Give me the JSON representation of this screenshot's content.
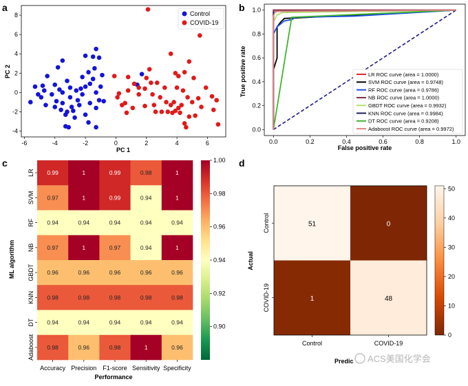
{
  "panel_labels": [
    "a",
    "b",
    "c",
    "d"
  ],
  "watermark": "ACS美国化学会",
  "chart_data": [
    {
      "panel": "a",
      "type": "scatter",
      "xlabel": "PC 1",
      "ylabel": "PC 2",
      "xlim": [
        -6.2,
        7.2
      ],
      "ylim": [
        -4.6,
        9.0
      ],
      "xticks": [
        -6,
        -4,
        -2,
        0,
        2,
        4,
        6
      ],
      "yticks": [
        -4,
        -2,
        0,
        2,
        4,
        6,
        8
      ],
      "legend_position": "top-right",
      "series": [
        {
          "name": "Control",
          "color": "#1414d8",
          "points": [
            [
              -5.3,
              0.6
            ],
            [
              -5.1,
              -0.2
            ],
            [
              -4.8,
              0.7
            ],
            [
              -4.9,
              -0.5
            ],
            [
              -5.6,
              -1.0
            ],
            [
              -4.7,
              0.2
            ],
            [
              -4.6,
              -1.3
            ],
            [
              -4.2,
              -0.2
            ],
            [
              -4.0,
              0.8
            ],
            [
              -3.7,
              0.3
            ],
            [
              -3.9,
              -0.9
            ],
            [
              -3.5,
              -1.1
            ],
            [
              -3.8,
              2.6
            ],
            [
              -3.5,
              3.3
            ],
            [
              -3.2,
              1.2
            ],
            [
              -3.0,
              -0.5
            ],
            [
              -2.9,
              -1.5
            ],
            [
              -2.8,
              -1.9
            ],
            [
              -3.6,
              -1.8
            ],
            [
              -3.3,
              -2.3
            ],
            [
              -3.3,
              -3.5
            ],
            [
              -3.1,
              -3.6
            ],
            [
              -2.7,
              -2.6
            ],
            [
              -2.5,
              -0.8
            ],
            [
              -2.3,
              0.4
            ],
            [
              -2.2,
              1.6
            ],
            [
              -1.8,
              2.1
            ],
            [
              -2.0,
              3.8
            ],
            [
              -1.5,
              3.7
            ],
            [
              -1.3,
              4.5
            ],
            [
              -1.1,
              3.6
            ],
            [
              -1.4,
              2.5
            ],
            [
              -1.7,
              0.9
            ],
            [
              -1.3,
              0.0
            ],
            [
              -1.1,
              -0.8
            ],
            [
              -1.7,
              -1.1
            ],
            [
              -1.3,
              -1.6
            ],
            [
              -2.0,
              -2.3
            ],
            [
              -1.8,
              -3.1
            ],
            [
              -0.8,
              -0.9
            ],
            [
              -0.9,
              1.8
            ],
            [
              -1.3,
              -3.6
            ],
            [
              -4.5,
              1.7
            ],
            [
              -3.0,
              0.5
            ],
            [
              -3.5,
              0.0
            ],
            [
              -2.4,
              -1.3
            ],
            [
              -2.2,
              -0.2
            ],
            [
              -2.0,
              0.6
            ],
            [
              1.7,
              1.9
            ],
            [
              1.4,
              0.8
            ],
            [
              -4.0,
              -1.5
            ],
            [
              -3.2,
              -2.0
            ],
            [
              -2.6,
              0.2
            ],
            [
              -1.5,
              1.4
            ],
            [
              -1.0,
              0.6
            ]
          ]
        },
        {
          "name": "COVID-19",
          "color": "#e01a1a",
          "points": [
            [
              2.1,
              8.6
            ],
            [
              5.5,
              5.9
            ],
            [
              3.6,
              4.0
            ],
            [
              4.8,
              3.2
            ],
            [
              2.2,
              2.4
            ],
            [
              3.9,
              2.0
            ],
            [
              4.1,
              1.7
            ],
            [
              4.5,
              2.1
            ],
            [
              5.1,
              1.5
            ],
            [
              2.0,
              1.5
            ],
            [
              2.7,
              1.0
            ],
            [
              0.8,
              1.6
            ],
            [
              -0.1,
              1.7
            ],
            [
              0.8,
              0.2
            ],
            [
              0.1,
              -0.5
            ],
            [
              0.6,
              -1.1
            ],
            [
              1.5,
              -0.2
            ],
            [
              1.9,
              0.4
            ],
            [
              2.4,
              -0.2
            ],
            [
              2.9,
              -0.5
            ],
            [
              3.3,
              -1.0
            ],
            [
              3.6,
              -1.3
            ],
            [
              3.9,
              -1.9
            ],
            [
              4.2,
              -2.1
            ],
            [
              4.3,
              -1.3
            ],
            [
              4.7,
              -0.5
            ],
            [
              5.0,
              -1.0
            ],
            [
              5.6,
              -1.5
            ],
            [
              5.9,
              0.5
            ],
            [
              6.3,
              -0.4
            ],
            [
              6.6,
              -0.8
            ],
            [
              6.4,
              -1.8
            ],
            [
              6.7,
              -3.3
            ],
            [
              4.5,
              -3.2
            ],
            [
              4.6,
              -3.6
            ],
            [
              3.8,
              -1.0
            ],
            [
              4.0,
              0.5
            ],
            [
              3.0,
              -2.0
            ],
            [
              3.4,
              -2.0
            ],
            [
              2.6,
              -2.0
            ],
            [
              2.3,
              1.0
            ],
            [
              1.2,
              0.9
            ],
            [
              1.1,
              -1.6
            ],
            [
              0.7,
              -2.1
            ],
            [
              0.4,
              -1.3
            ],
            [
              1.9,
              -1.4
            ],
            [
              2.5,
              -1.3
            ],
            [
              4.1,
              -1.6
            ],
            [
              3.7,
              -2.1
            ],
            [
              5.2,
              -2.4
            ],
            [
              4.8,
              -2.5
            ],
            [
              5.4,
              -0.6
            ],
            [
              1.5,
              0.5
            ],
            [
              0.2,
              -0.1
            ],
            [
              3.2,
              0.5
            ],
            [
              4.4,
              0.2
            ]
          ]
        }
      ]
    },
    {
      "panel": "b",
      "type": "line",
      "xlabel": "False positive rate",
      "ylabel": "True positive rate",
      "xlim": [
        -0.05,
        1.05
      ],
      "ylim": [
        -0.05,
        1.05
      ],
      "xticks": [
        0.0,
        0.2,
        0.4,
        0.6,
        0.8,
        1.0
      ],
      "xtick_labels": [
        "0.0",
        "0.2",
        "0.4",
        "0.6",
        "0.8",
        "1.0"
      ],
      "yticks": [
        0.0,
        0.2,
        0.4,
        0.6,
        0.8,
        1.0
      ],
      "ytick_labels": [
        "0.0",
        "0.2",
        "0.4",
        "0.6",
        "0.8",
        "1.0"
      ],
      "legend_position": "bottom-right",
      "series": [
        {
          "name": "LR ROC curve (area = 1.0000)",
          "color": "#e0292b",
          "x": [
            0,
            0,
            1
          ],
          "y": [
            0,
            1,
            1
          ]
        },
        {
          "name": "SVM ROC curve (area = 0.9748)",
          "color": "#000000",
          "x": [
            0,
            0,
            0.02,
            0.02,
            0.04,
            0.06,
            0.2,
            1
          ],
          "y": [
            0,
            0.5,
            0.6,
            0.86,
            0.9,
            0.93,
            0.94,
            1
          ]
        },
        {
          "name": "RF ROC curve (area = 0.9786)",
          "color": "#1c4ee0",
          "x": [
            0,
            0,
            0.02,
            0.06,
            0.1,
            0.12,
            0.45,
            1
          ],
          "y": [
            0,
            0.8,
            0.86,
            0.91,
            0.92,
            0.94,
            0.95,
            1
          ]
        },
        {
          "name": "NB ROC curve (area = 1.0000)",
          "color": "#7b2a45",
          "x": [
            0,
            0,
            1
          ],
          "y": [
            0,
            1,
            1
          ]
        },
        {
          "name": "GBDT ROC curve (area = 0.9932)",
          "color": "#b3e26b",
          "x": [
            0,
            0,
            0.02,
            0.05,
            1
          ],
          "y": [
            0,
            0.9,
            0.96,
            0.98,
            1
          ]
        },
        {
          "name": "KNN ROC curve (area = 0.9984)",
          "color": "#1d1d5a",
          "x": [
            0,
            0,
            0.02,
            1
          ],
          "y": [
            0,
            0.98,
            0.99,
            1
          ]
        },
        {
          "name": "DT ROC curve (area = 0.9208)",
          "color": "#3fb52d",
          "x": [
            0,
            0.1,
            1
          ],
          "y": [
            0,
            0.94,
            1
          ]
        },
        {
          "name": "Adaboost ROC curve (area = 0.9972)",
          "color": "#e08080",
          "x": [
            0,
            0,
            0.01,
            1
          ],
          "y": [
            0,
            0.95,
            0.99,
            1
          ]
        }
      ],
      "diagonal": {
        "color": "#1a1a8c",
        "x": [
          0,
          1
        ],
        "y": [
          0,
          1
        ]
      }
    },
    {
      "panel": "c",
      "type": "heatmap",
      "xlabel": "Performance",
      "ylabel": "ML algorithm",
      "columns": [
        "Accuracy",
        "Precision",
        "F1-score",
        "Sensitivity",
        "Specificity"
      ],
      "rows": [
        "LR",
        "SVM",
        "RF",
        "NB",
        "GBDT",
        "KNN",
        "DT",
        "Adaboost"
      ],
      "values": [
        [
          0.99,
          1,
          0.99,
          0.98,
          1
        ],
        [
          0.97,
          1,
          0.99,
          0.94,
          1
        ],
        [
          0.94,
          0.94,
          0.94,
          0.94,
          0.94
        ],
        [
          0.97,
          1,
          0.97,
          0.94,
          1
        ],
        [
          0.96,
          0.96,
          0.96,
          0.96,
          0.96
        ],
        [
          0.98,
          0.98,
          0.98,
          0.98,
          0.98
        ],
        [
          0.94,
          0.94,
          0.94,
          0.94,
          0.94
        ],
        [
          0.98,
          0.96,
          0.98,
          1,
          0.96
        ]
      ],
      "value_labels": [
        [
          "0.99",
          "1",
          "0.99",
          "0.98",
          "1"
        ],
        [
          "0.97",
          "1",
          "0.99",
          "0.94",
          "1"
        ],
        [
          "0.94",
          "0.94",
          "0.94",
          "0.94",
          "0.94"
        ],
        [
          "0.97",
          "1",
          "0.97",
          "0.94",
          "1"
        ],
        [
          "0.96",
          "0.96",
          "0.96",
          "0.96",
          "0.96"
        ],
        [
          "0.98",
          "0.98",
          "0.98",
          "0.98",
          "0.98"
        ],
        [
          "0.94",
          "0.94",
          "0.94",
          "0.94",
          "0.94"
        ],
        [
          "0.98",
          "0.96",
          "0.98",
          "1",
          "0.96"
        ]
      ],
      "colorbar_range": [
        0.88,
        1.0
      ],
      "colorbar_ticks": [
        0.9,
        0.92,
        0.94,
        0.96,
        0.98,
        1.0
      ],
      "colorbar_tick_labels": [
        "0.90",
        "0.92",
        "0.94",
        "0.96",
        "0.98",
        "1.00"
      ]
    },
    {
      "panel": "d",
      "type": "heatmap",
      "xlabel": "Predicted",
      "xlabel_visible": "Predic",
      "ylabel": "Actual",
      "columns": [
        "Control",
        "COVID-19"
      ],
      "rows": [
        "Control",
        "COVID-19"
      ],
      "values": [
        [
          51,
          0
        ],
        [
          1,
          48
        ]
      ],
      "value_labels": [
        [
          "51",
          "0"
        ],
        [
          "1",
          "48"
        ]
      ],
      "colorbar_range": [
        0,
        51
      ],
      "colorbar_ticks": [
        0,
        10,
        20,
        30,
        40,
        50
      ],
      "colorbar_tick_labels": [
        "0",
        "10",
        "20",
        "30",
        "40",
        "50"
      ]
    }
  ]
}
